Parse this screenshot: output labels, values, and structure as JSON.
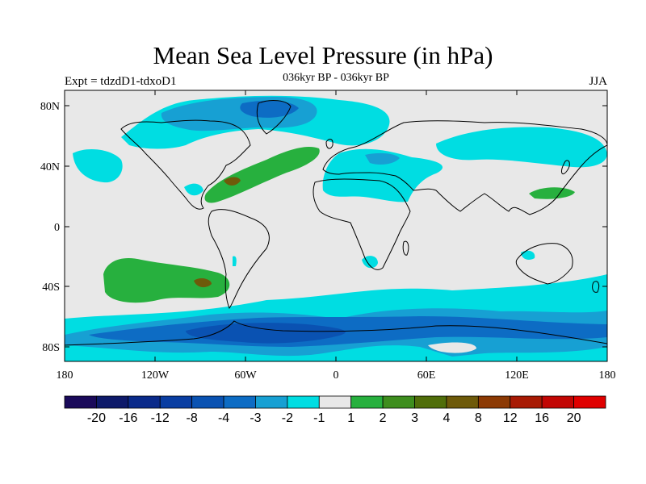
{
  "title": "Mean Sea Level Pressure (in hPa)",
  "subtitle_left": "Expt = tdzdD1-tdxoD1",
  "subtitle_center": "036kyr BP - 036kyr BP",
  "subtitle_right": "JJA",
  "axes": {
    "lat_ticks": [
      "80N",
      "40N",
      "0",
      "40S",
      "80S"
    ],
    "lon_ticks": [
      "180",
      "120W",
      "60W",
      "0",
      "60E",
      "120E",
      "180"
    ]
  },
  "colorbar": {
    "labels": [
      "-20",
      "-16",
      "-12",
      "-8",
      "-4",
      "-3",
      "-2",
      "-1",
      "1",
      "2",
      "3",
      "4",
      "8",
      "12",
      "16",
      "20"
    ],
    "colors": [
      "#1a0a5a",
      "#0e1a6a",
      "#0a2a8a",
      "#0a3ea2",
      "#0a52b2",
      "#0d6cc4",
      "#17a0d3",
      "#00dde2",
      "#e8e8e8",
      "#27b03e",
      "#3e8e1e",
      "#506e0a",
      "#6e5a0a",
      "#8c3a04",
      "#a81a04",
      "#c20604",
      "#e00000"
    ]
  },
  "map_colors": {
    "background": "#e8e8e8",
    "cyan": "#00dde2",
    "light_blue": "#17a0d3",
    "mid_blue": "#0d6cc4",
    "dark_blue": "#0a52b2",
    "green": "#27b03e",
    "olive": "#6e5a0a",
    "coast": "#000000"
  }
}
